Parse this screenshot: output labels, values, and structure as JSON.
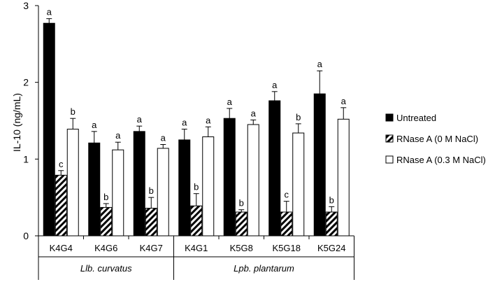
{
  "chart_data": {
    "type": "bar",
    "title": "",
    "xlabel": "",
    "ylabel": "IL-10 (ng/mL)",
    "ylim": [
      0,
      3
    ],
    "yticks": [
      0,
      1,
      2,
      3
    ],
    "categories": [
      "K4G4",
      "K4G6",
      "K4G7",
      "K4G1",
      "K5G8",
      "K5G18",
      "K5G24"
    ],
    "groups": [
      {
        "label": "Llb. curvatus",
        "categories": [
          "K4G4",
          "K4G6",
          "K4G7"
        ]
      },
      {
        "label": "Lpb. plantarum",
        "categories": [
          "K4G1",
          "K5G8",
          "K5G18",
          "K5G24"
        ]
      }
    ],
    "series": [
      {
        "name": "Untreated",
        "pattern": "solid-black",
        "values": [
          2.77,
          1.21,
          1.36,
          1.25,
          1.53,
          1.76,
          1.85
        ],
        "errors": [
          0.06,
          0.15,
          0.07,
          0.14,
          0.13,
          0.12,
          0.3
        ],
        "labels": [
          "a",
          "a",
          "a",
          "a",
          "a",
          "a",
          "a"
        ]
      },
      {
        "name": "RNase A (0 M NaCl)",
        "pattern": "hatched",
        "values": [
          0.79,
          0.37,
          0.36,
          0.39,
          0.31,
          0.31,
          0.31
        ],
        "errors": [
          0.06,
          0.05,
          0.14,
          0.16,
          0.03,
          0.14,
          0.07
        ],
        "labels": [
          "c",
          "b",
          "b",
          "b",
          "b",
          "c",
          "b"
        ]
      },
      {
        "name": "RNase A (0.3 M NaCl)",
        "pattern": "white",
        "values": [
          1.39,
          1.12,
          1.14,
          1.29,
          1.45,
          1.34,
          1.52
        ],
        "errors": [
          0.14,
          0.1,
          0.05,
          0.13,
          0.06,
          0.12,
          0.15
        ],
        "labels": [
          "b",
          "a",
          "a",
          "a",
          "a",
          "b",
          "a"
        ]
      }
    ],
    "legend_position": "right",
    "grid": false
  }
}
